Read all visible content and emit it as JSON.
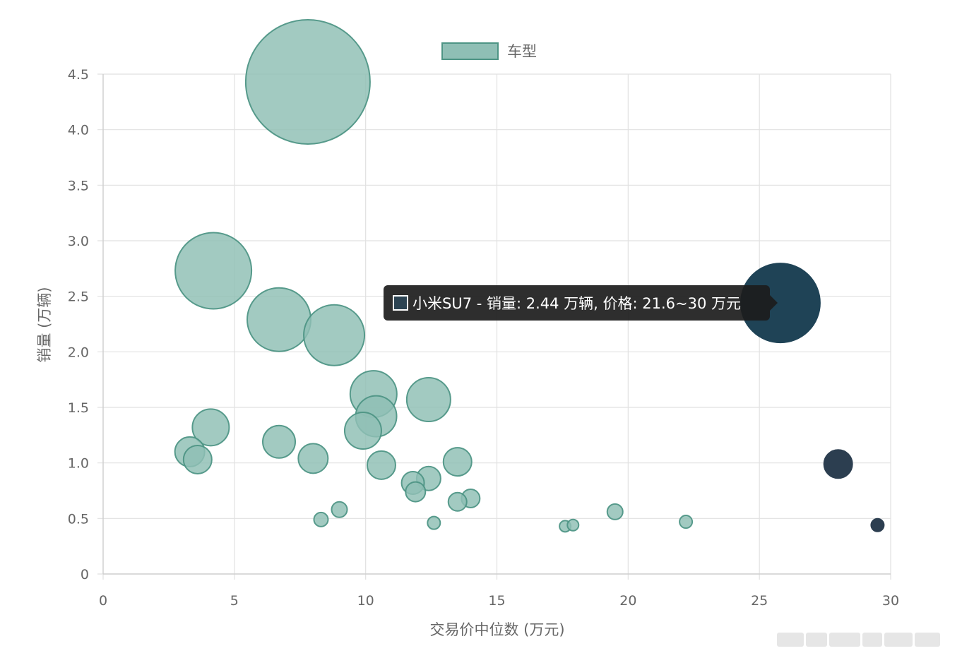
{
  "chart_data": {
    "type": "bubble",
    "xlabel": "交易价中位数 (万元)",
    "ylabel": "销量 (万辆)",
    "xlim": [
      0,
      30
    ],
    "ylim": [
      0,
      4.5
    ],
    "x_ticks": [
      0,
      5,
      10,
      15,
      20,
      25,
      30
    ],
    "y_ticks": [
      "0",
      "0.5",
      "1.0",
      "1.5",
      "2.0",
      "2.5",
      "3.0",
      "3.5",
      "4.0",
      "4.5"
    ],
    "y_tick_values": [
      0,
      0.5,
      1.0,
      1.5,
      2.0,
      2.5,
      3.0,
      3.5,
      4.0,
      4.5
    ],
    "grid": true,
    "legend": {
      "position": "top",
      "label": "车型"
    },
    "colors": {
      "fill": "#8fbfb5",
      "stroke": "#4e9585",
      "highlight": "#1f4356",
      "dark": "#2c3e50",
      "grid": "#e1e1e1",
      "tooltip_bg": "#1c1c1c"
    },
    "tooltip": {
      "text": "小米SU7 - 销量: 2.44 万辆, 价格: 21.6~30 万元",
      "x": 25.8,
      "y": 2.44
    },
    "series": [
      {
        "name": "车型",
        "points": [
          {
            "x": 7.8,
            "y": 4.43,
            "r": 88
          },
          {
            "x": 4.2,
            "y": 2.73,
            "r": 54
          },
          {
            "x": 6.7,
            "y": 2.29,
            "r": 45
          },
          {
            "x": 8.8,
            "y": 2.15,
            "r": 43
          },
          {
            "x": 10.3,
            "y": 1.62,
            "r": 33
          },
          {
            "x": 12.4,
            "y": 1.57,
            "r": 31
          },
          {
            "x": 10.4,
            "y": 1.42,
            "r": 29
          },
          {
            "x": 9.9,
            "y": 1.29,
            "r": 26
          },
          {
            "x": 4.1,
            "y": 1.32,
            "r": 26
          },
          {
            "x": 6.7,
            "y": 1.19,
            "r": 23
          },
          {
            "x": 3.3,
            "y": 1.1,
            "r": 21
          },
          {
            "x": 3.6,
            "y": 1.03,
            "r": 20
          },
          {
            "x": 8.0,
            "y": 1.04,
            "r": 21
          },
          {
            "x": 10.6,
            "y": 0.98,
            "r": 20
          },
          {
            "x": 13.5,
            "y": 1.01,
            "r": 20
          },
          {
            "x": 12.4,
            "y": 0.86,
            "r": 17
          },
          {
            "x": 11.8,
            "y": 0.82,
            "r": 16
          },
          {
            "x": 11.9,
            "y": 0.74,
            "r": 14
          },
          {
            "x": 14.0,
            "y": 0.68,
            "r": 13
          },
          {
            "x": 13.5,
            "y": 0.65,
            "r": 13
          },
          {
            "x": 9.0,
            "y": 0.58,
            "r": 11
          },
          {
            "x": 8.3,
            "y": 0.49,
            "r": 10
          },
          {
            "x": 12.6,
            "y": 0.46,
            "r": 9
          },
          {
            "x": 17.6,
            "y": 0.43,
            "r": 8
          },
          {
            "x": 17.9,
            "y": 0.44,
            "r": 8
          },
          {
            "x": 19.5,
            "y": 0.56,
            "r": 11
          },
          {
            "x": 22.2,
            "y": 0.47,
            "r": 9
          },
          {
            "x": 25.8,
            "y": 2.44,
            "r": 56,
            "highlight": true
          },
          {
            "x": 28.0,
            "y": 0.99,
            "r": 20,
            "dark": true
          },
          {
            "x": 29.5,
            "y": 0.44,
            "r": 9,
            "dark": true
          }
        ]
      }
    ]
  }
}
